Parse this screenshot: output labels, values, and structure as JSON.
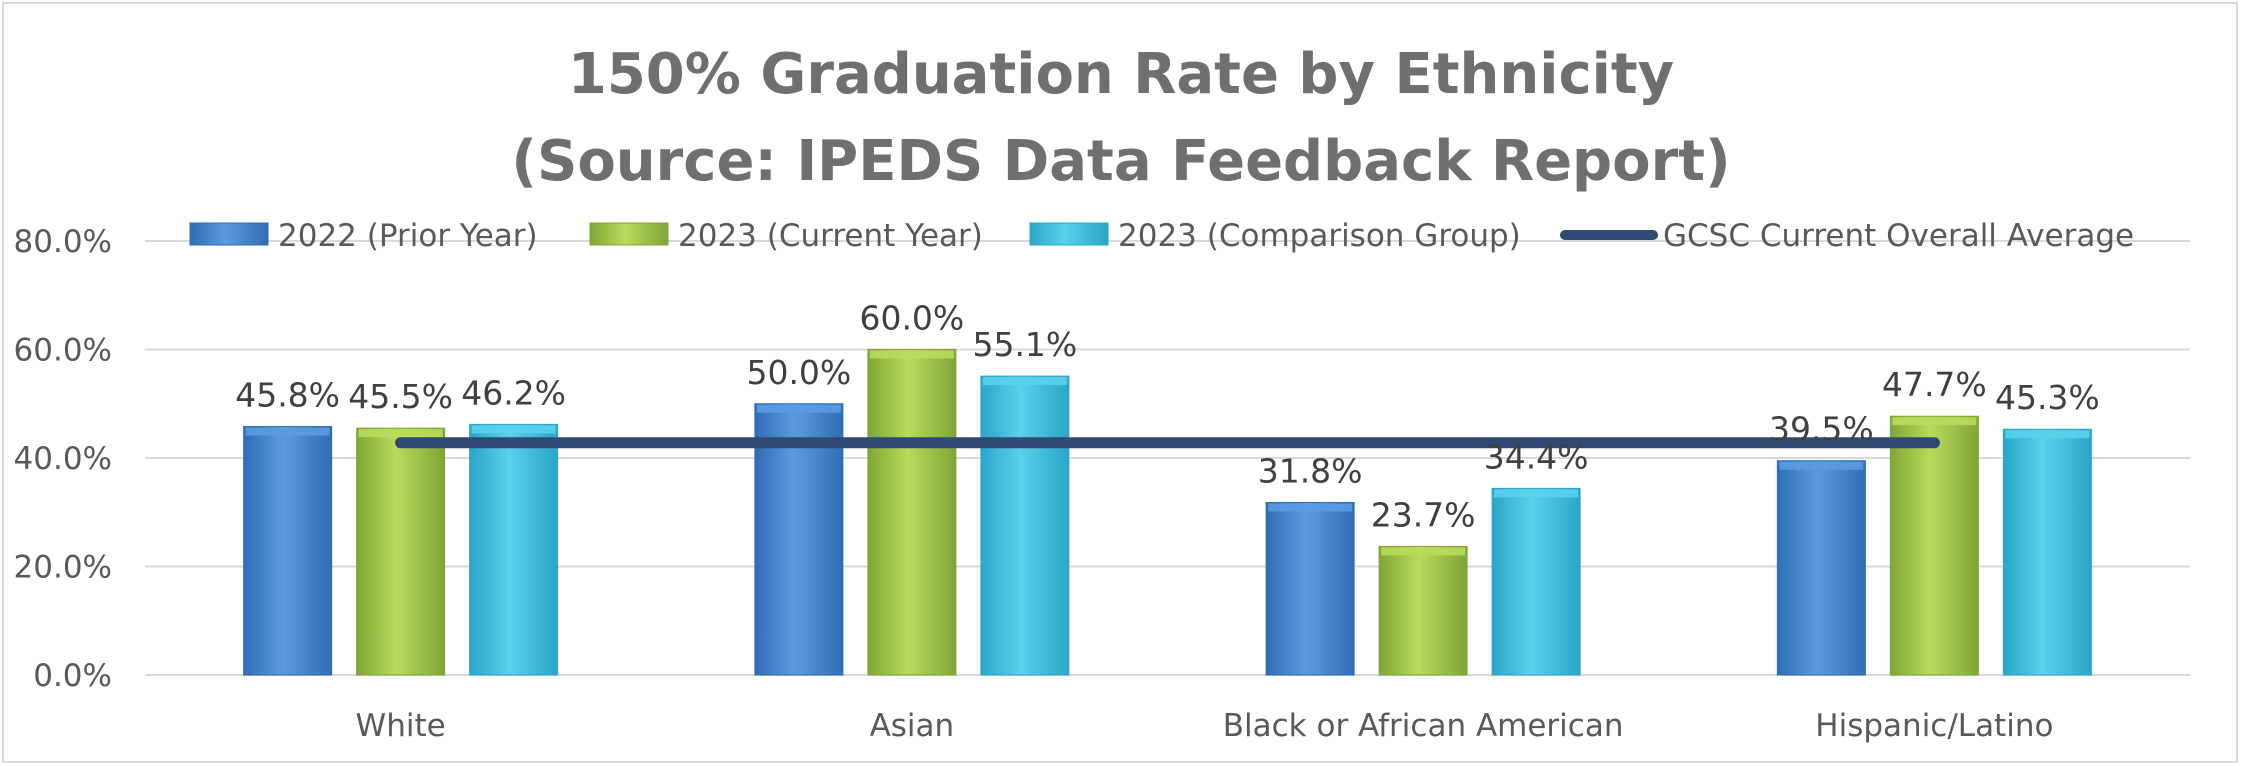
{
  "chart_data": {
    "type": "bar",
    "title_lines": [
      "150% Graduation Rate by Ethnicity",
      "(Source: IPEDS Data Feedback Report)"
    ],
    "categories": [
      "White",
      "Asian",
      "Black or African American",
      "Hispanic/Latino"
    ],
    "series": [
      {
        "name": "2022 (Prior Year)",
        "values": [
          45.8,
          50.0,
          31.8,
          39.5
        ],
        "labels": [
          "45.8%",
          "50.0%",
          "31.8%",
          "39.5%"
        ],
        "color": "#2f6db5",
        "color_light": "#5a9be0"
      },
      {
        "name": "2023 (Current Year)",
        "values": [
          45.5,
          60.0,
          23.7,
          47.7
        ],
        "labels": [
          "45.5%",
          "60.0%",
          "23.7%",
          "47.7%"
        ],
        "color": "#7fa537",
        "color_light": "#b9dc5c"
      },
      {
        "name": "2023 (Comparison Group)",
        "values": [
          46.2,
          55.1,
          34.4,
          45.3
        ],
        "labels": [
          "46.2%",
          "55.1%",
          "34.4%",
          "45.3%"
        ],
        "color": "#2aa6c9",
        "color_light": "#5cd0ec"
      }
    ],
    "line": {
      "name": "GCSC Current Overall Average",
      "value": 42.8,
      "color": "#2e4a72"
    },
    "ylim": [
      0,
      80
    ],
    "yticks": [
      0,
      20,
      40,
      60,
      80
    ],
    "ytick_labels": [
      "0.0%",
      "20.0%",
      "40.0%",
      "60.0%",
      "80.0%"
    ],
    "grid": true,
    "legend_position": "top"
  }
}
